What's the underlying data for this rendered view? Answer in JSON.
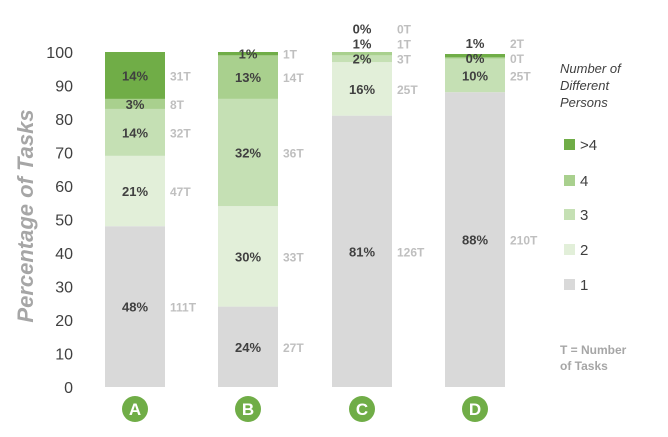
{
  "chart_data": {
    "type": "bar",
    "stacked": true,
    "ylabel": "Percentage of Tasks",
    "ylim": [
      0,
      100
    ],
    "yticks": [
      0,
      10,
      20,
      30,
      40,
      50,
      60,
      70,
      80,
      90,
      100
    ],
    "categories": [
      "A",
      "B",
      "C",
      "D"
    ],
    "series": [
      {
        "name": "1",
        "color": "#d9d9d9",
        "values": [
          48,
          24,
          81,
          88
        ],
        "labels": [
          "48%",
          "24%",
          "81%",
          "88%"
        ],
        "tasks": [
          "111T",
          "27T",
          "126T",
          "210T"
        ]
      },
      {
        "name": "2",
        "color": "#e2efd9",
        "values": [
          21,
          30,
          16,
          0
        ],
        "labels": [
          "21%",
          "30%",
          "16%",
          ""
        ],
        "tasks": [
          "47T",
          "33T",
          "25T",
          ""
        ]
      },
      {
        "name": "3",
        "color": "#c5e0b4",
        "values": [
          14,
          32,
          2,
          10
        ],
        "labels": [
          "14%",
          "32%",
          "2%",
          "10%"
        ],
        "tasks": [
          "32T",
          "36T",
          "3T",
          "25T"
        ]
      },
      {
        "name": "4",
        "color": "#a9d08e",
        "values": [
          3,
          13,
          1,
          0.4
        ],
        "labels": [
          "3%",
          "13%",
          "1%",
          "0%"
        ],
        "tasks": [
          "8T",
          "14T",
          "1T",
          "0T"
        ]
      },
      {
        "name": ">4",
        "color": "#70ad47",
        "values": [
          14,
          1,
          0,
          1
        ],
        "labels": [
          "14%",
          "1%",
          "0%",
          "1%"
        ],
        "tasks": [
          "31T",
          "1T",
          "0T",
          "2T"
        ]
      }
    ],
    "legend": {
      "title": "Number of Different Persons",
      "order": [
        ">4",
        "4",
        "3",
        "2",
        "1"
      ],
      "position": "right"
    },
    "note": "T = Number of Tasks",
    "category_badge_color": "#70ad47",
    "grid": false
  }
}
